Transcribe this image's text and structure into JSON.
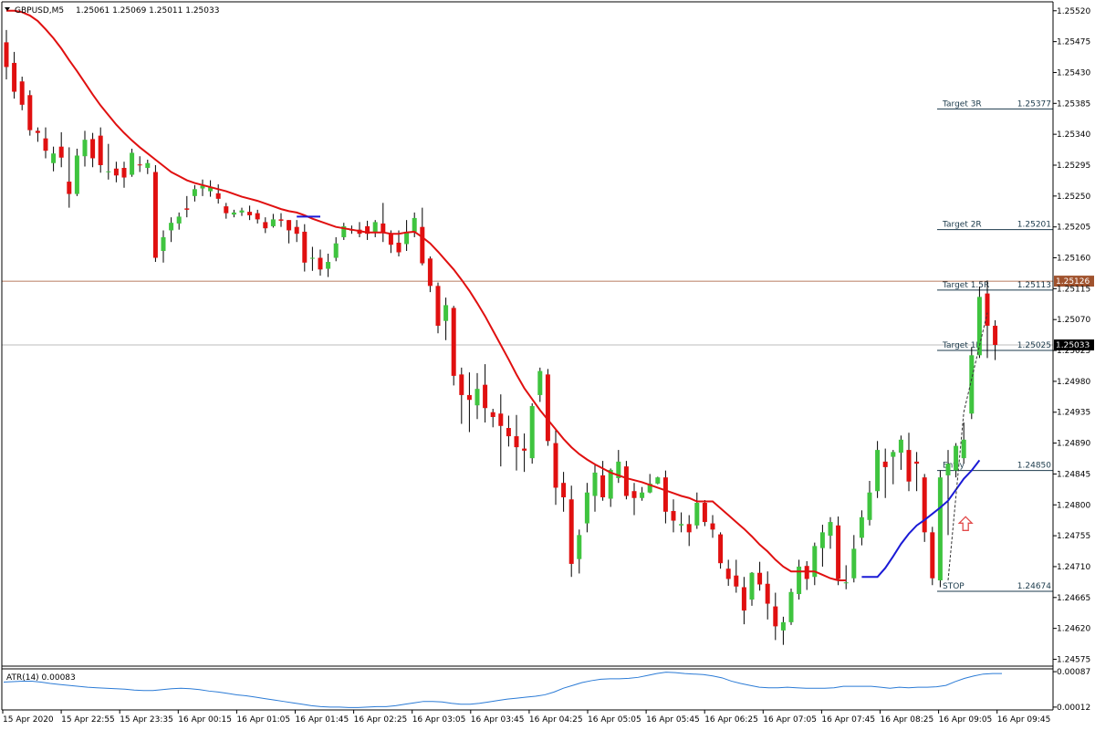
{
  "chart_data": {
    "type": "candlestick",
    "title": "GBPUSD,M5",
    "ohlc_header": "1.25061 1.25069 1.25011 1.25033",
    "ylim": [
      1.24565,
      1.25533
    ],
    "y_ticks": [
      "1.25520",
      "1.25475",
      "1.25430",
      "1.25385",
      "1.25340",
      "1.25295",
      "1.25250",
      "1.25205",
      "1.25160",
      "1.25115",
      "1.25070",
      "1.25025",
      "1.24980",
      "1.24935",
      "1.24890",
      "1.24845",
      "1.24800",
      "1.24755",
      "1.24710",
      "1.24665",
      "1.24620",
      "1.24575"
    ],
    "x_ticks": [
      "15 Apr 2020",
      "15 Apr 22:55",
      "15 Apr 23:35",
      "16 Apr 00:15",
      "16 Apr 01:05",
      "16 Apr 01:45",
      "16 Apr 02:25",
      "16 Apr 03:05",
      "16 Apr 03:45",
      "16 Apr 04:25",
      "16 Apr 05:05",
      "16 Apr 05:45",
      "16 Apr 06:25",
      "16 Apr 07:05",
      "16 Apr 07:45",
      "16 Apr 08:25",
      "16 Apr 09:05",
      "16 Apr 09:45"
    ],
    "candles": [
      [
        1.25474,
        1.25492,
        1.2542,
        1.25438
      ],
      [
        1.25444,
        1.2546,
        1.25392,
        1.25402
      ],
      [
        1.25417,
        1.25424,
        1.25375,
        1.25383
      ],
      [
        1.25397,
        1.25404,
        1.25338,
        1.25346
      ],
      [
        1.25345,
        1.2535,
        1.25329,
        1.25342
      ],
      [
        1.25334,
        1.2535,
        1.25305,
        1.25316
      ],
      [
        1.25298,
        1.25322,
        1.25286,
        1.25312
      ],
      [
        1.25322,
        1.25343,
        1.25292,
        1.25306
      ],
      [
        1.25271,
        1.25321,
        1.25233,
        1.25253
      ],
      [
        1.25253,
        1.25319,
        1.2525,
        1.25309
      ],
      [
        1.25308,
        1.25345,
        1.25293,
        1.25332
      ],
      [
        1.25333,
        1.25342,
        1.25292,
        1.25305
      ],
      [
        1.25338,
        1.2535,
        1.25284,
        1.25295
      ],
      [
        1.25285,
        1.25326,
        1.25274,
        1.25286
      ],
      [
        1.2529,
        1.253,
        1.2527,
        1.2528
      ],
      [
        1.25291,
        1.253,
        1.25262,
        1.25277
      ],
      [
        1.25281,
        1.25319,
        1.25278,
        1.25313
      ],
      [
        1.25296,
        1.25308,
        1.25285,
        1.25295
      ],
      [
        1.25291,
        1.25303,
        1.25282,
        1.25298
      ],
      [
        1.25285,
        1.25295,
        1.25154,
        1.2516
      ],
      [
        1.2517,
        1.252,
        1.25153,
        1.2519
      ],
      [
        1.252,
        1.25219,
        1.25183,
        1.25211
      ],
      [
        1.2521,
        1.25226,
        1.25201,
        1.2522
      ],
      [
        1.25232,
        1.2525,
        1.25219,
        1.2523
      ],
      [
        1.2525,
        1.25266,
        1.25242,
        1.2526
      ],
      [
        1.25261,
        1.25274,
        1.2525,
        1.25265
      ],
      [
        1.25257,
        1.25273,
        1.25249,
        1.25263
      ],
      [
        1.25254,
        1.25267,
        1.25239,
        1.25246
      ],
      [
        1.25235,
        1.2524,
        1.25217,
        1.25225
      ],
      [
        1.25223,
        1.2523,
        1.25219,
        1.25226
      ],
      [
        1.25226,
        1.25233,
        1.25221,
        1.25229
      ],
      [
        1.25227,
        1.25236,
        1.25215,
        1.25222
      ],
      [
        1.25225,
        1.2523,
        1.2521,
        1.25216
      ],
      [
        1.25212,
        1.25219,
        1.25196,
        1.25203
      ],
      [
        1.25206,
        1.25224,
        1.25204,
        1.25216
      ],
      [
        1.25216,
        1.25225,
        1.25205,
        1.25214
      ],
      [
        1.25215,
        1.25215,
        1.25181,
        1.252
      ],
      [
        1.25205,
        1.25215,
        1.25183,
        1.25195
      ],
      [
        1.25198,
        1.25209,
        1.2514,
        1.25153
      ],
      [
        1.2516,
        1.25176,
        1.25141,
        1.2516
      ],
      [
        1.2516,
        1.25172,
        1.25134,
        1.25143
      ],
      [
        1.25144,
        1.25166,
        1.25132,
        1.25154
      ],
      [
        1.2516,
        1.2519,
        1.25155,
        1.25181
      ],
      [
        1.2519,
        1.25211,
        1.25186,
        1.25206
      ],
      [
        1.25201,
        1.25207,
        1.25195,
        1.252
      ],
      [
        1.25201,
        1.25212,
        1.2519,
        1.25195
      ],
      [
        1.25206,
        1.25214,
        1.25186,
        1.25195
      ],
      [
        1.25198,
        1.25215,
        1.2519,
        1.25212
      ],
      [
        1.2521,
        1.2524,
        1.25183,
        1.25197
      ],
      [
        1.25196,
        1.252,
        1.25167,
        1.25179
      ],
      [
        1.25182,
        1.252,
        1.25162,
        1.25168
      ],
      [
        1.2518,
        1.25215,
        1.2517,
        1.25198
      ],
      [
        1.25198,
        1.25226,
        1.2519,
        1.25218
      ],
      [
        1.25205,
        1.25233,
        1.25149,
        1.25152
      ],
      [
        1.25159,
        1.25162,
        1.2511,
        1.25119
      ],
      [
        1.25119,
        1.25124,
        1.2505,
        1.25061
      ],
      [
        1.25068,
        1.25102,
        1.2504,
        1.25091
      ],
      [
        1.25087,
        1.2509,
        1.24974,
        1.24988
      ],
      [
        1.2499,
        1.25,
        1.24918,
        1.2496
      ],
      [
        1.2496,
        1.24993,
        1.24906,
        1.24953
      ],
      [
        1.24945,
        1.24992,
        1.24925,
        1.24969
      ],
      [
        1.24975,
        1.25005,
        1.2492,
        1.24941
      ],
      [
        1.24935,
        1.2494,
        1.24913,
        1.24928
      ],
      [
        1.24933,
        1.24961,
        1.24856,
        1.24915
      ],
      [
        1.24912,
        1.2493,
        1.24885,
        1.249
      ],
      [
        1.249,
        1.24931,
        1.2485,
        1.24884
      ],
      [
        1.24882,
        1.24904,
        1.24848,
        1.24879
      ],
      [
        1.24868,
        1.24948,
        1.2486,
        1.24944
      ],
      [
        1.2496,
        1.25,
        1.2495,
        1.24995
      ],
      [
        1.2499,
        1.24998,
        1.24886,
        1.24893
      ],
      [
        1.2489,
        1.2491,
        1.248,
        1.24825
      ],
      [
        1.24832,
        1.24848,
        1.2479,
        1.24811
      ],
      [
        1.24808,
        1.24828,
        1.24695,
        1.24714
      ],
      [
        1.24721,
        1.24764,
        1.247,
        1.24756
      ],
      [
        1.24773,
        1.24832,
        1.2476,
        1.24818
      ],
      [
        1.24813,
        1.2486,
        1.2479,
        1.24847
      ],
      [
        1.24843,
        1.24864,
        1.24806,
        1.24811
      ],
      [
        1.24809,
        1.24853,
        1.24797,
        1.24851
      ],
      [
        1.24839,
        1.2488,
        1.24832,
        1.24863
      ],
      [
        1.24856,
        1.24864,
        1.24808,
        1.24813
      ],
      [
        1.2482,
        1.24832,
        1.24785,
        1.2481
      ],
      [
        1.2481,
        1.24826,
        1.24806,
        1.24818
      ],
      [
        1.24818,
        1.24845,
        1.24817,
        1.24831
      ],
      [
        1.24831,
        1.24841,
        1.2483,
        1.2484
      ],
      [
        1.2484,
        1.2485,
        1.24773,
        1.2479
      ],
      [
        1.24791,
        1.24808,
        1.2476,
        1.24777
      ],
      [
        1.2477,
        1.24789,
        1.2476,
        1.24772
      ],
      [
        1.24772,
        1.24785,
        1.2474,
        1.2476
      ],
      [
        1.2477,
        1.24818,
        1.24765,
        1.24803
      ],
      [
        1.24803,
        1.24807,
        1.24769,
        1.24775
      ],
      [
        1.24773,
        1.24785,
        1.24752,
        1.24764
      ],
      [
        1.24757,
        1.2476,
        1.24707,
        1.24715
      ],
      [
        1.24707,
        1.2472,
        1.24682,
        1.24692
      ],
      [
        1.24697,
        1.2472,
        1.24672,
        1.24681
      ],
      [
        1.2468,
        1.24695,
        1.24626,
        1.24646
      ],
      [
        1.24662,
        1.24702,
        1.24653,
        1.24701
      ],
      [
        1.24701,
        1.24717,
        1.24675,
        1.24684
      ],
      [
        1.24685,
        1.24703,
        1.24633,
        1.24656
      ],
      [
        1.24652,
        1.24672,
        1.24603,
        1.24623
      ],
      [
        1.24617,
        1.24637,
        1.24596,
        1.24629
      ],
      [
        1.24629,
        1.24678,
        1.24625,
        1.24673
      ],
      [
        1.2467,
        1.2472,
        1.24662,
        1.2471
      ],
      [
        1.24711,
        1.24718,
        1.24676,
        1.24692
      ],
      [
        1.24695,
        1.24745,
        1.24683,
        1.2474
      ],
      [
        1.24737,
        1.24771,
        1.2471,
        1.2476
      ],
      [
        1.24755,
        1.24782,
        1.24736,
        1.24775
      ],
      [
        1.2477,
        1.24783,
        1.24683,
        1.24692
      ],
      [
        1.24686,
        1.24712,
        1.24677,
        1.24687
      ],
      [
        1.24693,
        1.24756,
        1.24687,
        1.24736
      ],
      [
        1.24752,
        1.24792,
        1.24741,
        1.24782
      ],
      [
        1.24778,
        1.24835,
        1.2477,
        1.24818
      ],
      [
        1.2482,
        1.24893,
        1.2481,
        1.2488
      ],
      [
        1.24863,
        1.24882,
        1.2481,
        1.24855
      ],
      [
        1.2487,
        1.2488,
        1.2483,
        1.24877
      ],
      [
        1.24876,
        1.24901,
        1.24851,
        1.24895
      ],
      [
        1.2488,
        1.24905,
        1.2482,
        1.24834
      ],
      [
        1.24863,
        1.24877,
        1.2482,
        1.2486
      ],
      [
        1.2484,
        1.24845,
        1.24746,
        1.2476
      ],
      [
        1.2476,
        1.24768,
        1.24683,
        1.24693
      ],
      [
        1.2469,
        1.2485,
        1.2468,
        1.2484
      ],
      [
        1.24843,
        1.2488,
        1.24756,
        1.2486
      ],
      [
        1.2485,
        1.2489,
        1.2484,
        1.24886
      ],
      [
        1.24868,
        1.2492,
        1.2486,
        1.24895
      ],
      [
        1.24933,
        1.2503,
        1.24925,
        1.25018
      ],
      [
        1.25018,
        1.25118,
        1.25014,
        1.25103
      ],
      [
        1.25108,
        1.25127,
        1.25014,
        1.25061
      ],
      [
        1.25061,
        1.25069,
        1.25011,
        1.25033
      ]
    ],
    "ma_red": [
      1.2552,
      1.2552,
      1.25518,
      1.25513,
      1.25505,
      1.25493,
      1.2548,
      1.25465,
      1.25448,
      1.25432,
      1.25415,
      1.25398,
      1.25382,
      1.25368,
      1.25354,
      1.25342,
      1.25331,
      1.25321,
      1.25312,
      1.25303,
      1.25294,
      1.25285,
      1.25279,
      1.25273,
      1.25269,
      1.25266,
      1.25263,
      1.2526,
      1.25257,
      1.25253,
      1.25249,
      1.25246,
      1.25243,
      1.25239,
      1.25235,
      1.25231,
      1.25228,
      1.25226,
      1.25222,
      1.25217,
      1.25213,
      1.25209,
      1.25205,
      1.25203,
      1.25201,
      1.25199,
      1.25197,
      1.25197,
      1.25197,
      1.25195,
      1.25195,
      1.25197,
      1.25198,
      1.2519,
      1.25181,
      1.25169,
      1.25156,
      1.25143,
      1.25128,
      1.25112,
      1.25094,
      1.25075,
      1.25054,
      1.25033,
      1.25012,
      1.2499,
      1.2497,
      1.24954,
      1.24938,
      1.24924,
      1.2491,
      1.24896,
      1.24884,
      1.24874,
      1.24866,
      1.24859,
      1.24853,
      1.24847,
      1.24843,
      1.24839,
      1.24836,
      1.24833,
      1.24829,
      1.24825,
      1.24821,
      1.24817,
      1.24813,
      1.2481,
      1.24805,
      1.24805,
      1.24805,
      1.24795,
      1.24785,
      1.24775,
      1.24765,
      1.24754,
      1.24742,
      1.24732,
      1.2472,
      1.2471,
      1.24703,
      1.24703,
      1.24703,
      1.24703,
      1.24698,
      1.24693,
      1.2469,
      1.2469
    ],
    "ma_blue": [
      1.2522,
      1.2522,
      1.2522,
      1.24695,
      1.24695,
      1.24695,
      1.24708,
      1.24725,
      1.24743,
      1.24758,
      1.2477,
      1.24778,
      1.24787,
      1.24796,
      1.24806,
      1.24822,
      1.24838,
      1.2485,
      1.24865
    ],
    "atr": {
      "label": "ATR(14) 0.00083",
      "y_ticks": [
        "0.00087",
        "0.00012"
      ],
      "ylim": [
        6e-05,
        0.00093
      ],
      "values": [
        0.00065,
        0.00066,
        0.00067,
        0.00067,
        0.00065,
        0.00062,
        0.0006,
        0.00058,
        0.00056,
        0.00054,
        0.00053,
        0.00052,
        0.00051,
        0.0005,
        0.00048,
        0.00047,
        0.00047,
        0.00049,
        0.00051,
        0.00052,
        0.00051,
        0.00049,
        0.00046,
        0.00044,
        0.00041,
        0.00038,
        0.00036,
        0.00033,
        0.0003,
        0.00027,
        0.00024,
        0.00021,
        0.00018,
        0.00015,
        0.00013,
        0.00012,
        0.00012,
        0.00011,
        0.00011,
        0.00012,
        0.00013,
        0.00013,
        0.00015,
        0.00018,
        0.00021,
        0.00024,
        0.00024,
        0.00023,
        0.0002,
        0.00018,
        0.00018,
        0.0002,
        0.00023,
        0.00026,
        0.00029,
        0.00031,
        0.00033,
        0.00035,
        0.00038,
        0.00044,
        0.00052,
        0.00058,
        0.00064,
        0.00068,
        0.00071,
        0.00072,
        0.00072,
        0.00073,
        0.00075,
        0.00079,
        0.00083,
        0.00086,
        0.00085,
        0.00083,
        0.00082,
        0.00081,
        0.00078,
        0.00074,
        0.00067,
        0.00062,
        0.00058,
        0.00054,
        0.00053,
        0.00053,
        0.00054,
        0.00053,
        0.00052,
        0.00052,
        0.00052,
        0.00053,
        0.00056,
        0.00056,
        0.00056,
        0.00056,
        0.00054,
        0.00052,
        0.00054,
        0.00053,
        0.00054,
        0.00054,
        0.00055,
        0.00058,
        0.00066,
        0.00073,
        0.00078,
        0.00082,
        0.00083,
        0.00083
      ]
    },
    "price_lines": [
      {
        "value": 1.25126,
        "label": "1.25126",
        "color": "#a0522d"
      },
      {
        "value": 1.25033,
        "label": "1.25033",
        "color": "#000000"
      }
    ],
    "levels": [
      {
        "name": "Target 3R",
        "value": 1.25377,
        "label": "1.25377"
      },
      {
        "name": "Target 2R",
        "value": 1.25201,
        "label": "1.25201"
      },
      {
        "name": "Target 1.5R",
        "value": 1.25113,
        "label": "1.25113"
      },
      {
        "name": "Target 1R",
        "value": 1.25025,
        "label": "1.25025"
      },
      {
        "name": "Entry",
        "value": 1.2485,
        "label": "1.24850"
      },
      {
        "name": "STOP",
        "value": 1.24674,
        "label": "1.24674"
      }
    ],
    "colors": {
      "up": "#3fc43f",
      "down": "#e01010",
      "ma_red": "#e01010",
      "ma_blue": "#1a1ad6",
      "atr": "#2b7bd6",
      "level": "#1b3a4b",
      "arrow": "#e24a4a"
    }
  }
}
